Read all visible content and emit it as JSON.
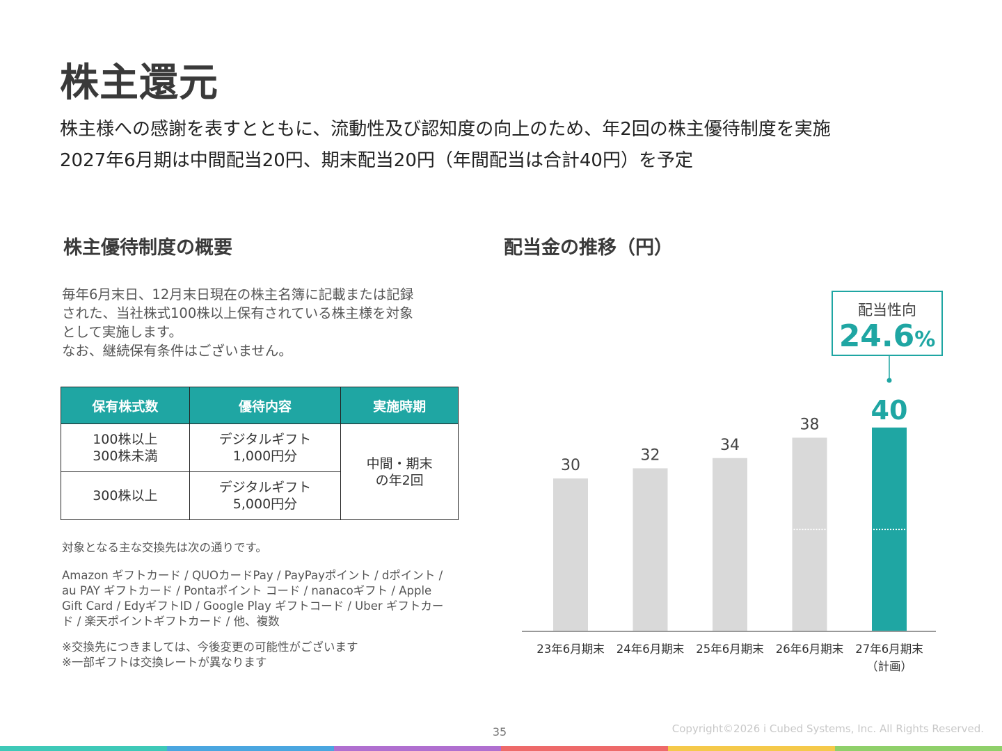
{
  "page": {
    "title": "株主還元",
    "subtitle_lines": [
      "株主様への感謝を表すとともに、流動性及び認知度の向上のため、年2回の株主優待制度を実施",
      "2027年6月期は中間配当20円、期末配当20円（年間配当は合計40円）を予定"
    ],
    "page_number": "35",
    "copyright": "Copyright©2026 i Cubed Systems, Inc. All Rights Reserved."
  },
  "benefits": {
    "heading": "株主優待制度の概要",
    "description_lines": [
      "毎年6月末日、12月末日現在の株主名簿に記載または記録",
      "された、当社株式100株以上保有されている株主様を対象",
      "として実施します。",
      "なお、継続保有条件はございません。"
    ],
    "table": {
      "headers": [
        "保有株式数",
        "優待内容",
        "実施時期"
      ],
      "rows": [
        {
          "shares": [
            "100株以上",
            "300株未満"
          ],
          "content": [
            "デジタルギフト",
            "1,000円分"
          ]
        },
        {
          "shares": [
            "300株以上"
          ],
          "content": [
            "デジタルギフト",
            "5,000円分"
          ]
        }
      ],
      "timing": [
        "中間・期末",
        "の年2回"
      ]
    },
    "exchange_intro": "対象となる主な交換先は次の通りです。",
    "exchange_lines": [
      "Amazon ギフトカード / QUOカードPay / PayPayポイント / dポイント /",
      "au PAY ギフトカード / Pontaポイント コード / nanacoギフト / Apple",
      "Gift Card / EdyギフトID / Google Play ギフトコード / Uber ギフトカー",
      "ド / 楽天ポイントギフトカード / 他、複数"
    ],
    "notes": [
      "※交換先につきましては、今後変更の可能性がございます",
      "※一部ギフトは交換レートが異なります"
    ]
  },
  "dividend": {
    "heading": "配当金の推移（円）",
    "payout_label": "配当性向",
    "payout_value": "24.6",
    "payout_unit": "%"
  },
  "chart_data": {
    "type": "bar",
    "title": "配当金の推移（円）",
    "categories": [
      "23年6月期末",
      "24年6月期末",
      "25年6月期末",
      "26年6月期末",
      "27年6月期末"
    ],
    "category_sublabels": [
      "",
      "",
      "",
      "",
      "（計画）"
    ],
    "values": [
      30,
      32,
      34,
      38,
      40
    ],
    "split_marker_value": 20,
    "split_marker_bars": [
      3,
      4
    ],
    "highlight_index": 4,
    "colors": {
      "bar": "#d9d9d9",
      "highlight": "#1fa6a3",
      "label": "#444444",
      "axis": "#999999"
    },
    "ylim": [
      0,
      40
    ]
  },
  "colors": {
    "accent": "#1fa6a3",
    "footer_bar": [
      "#3ec9b8",
      "#4aa6e0",
      "#b06fd0",
      "#ee6a6a",
      "#f5c94a",
      "#8fd06a"
    ]
  }
}
